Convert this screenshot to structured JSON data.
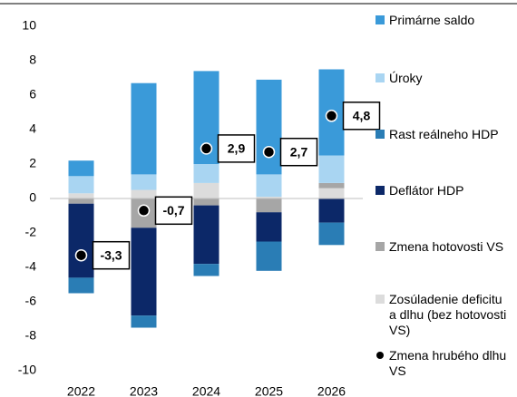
{
  "chart_data": {
    "type": "bar",
    "stacked": true,
    "categories": [
      "2022",
      "2023",
      "2024",
      "2025",
      "2026"
    ],
    "ylim": [
      -10,
      10
    ],
    "yticks": [
      -10,
      -8,
      -6,
      -4,
      -2,
      0,
      2,
      4,
      6,
      8,
      10
    ],
    "series": [
      {
        "name": "Primárne saldo",
        "color": "#3a9ad9",
        "values": [
          0.9,
          5.3,
          5.4,
          5.5,
          5.0
        ]
      },
      {
        "name": "Úroky",
        "color": "#a9d5f2",
        "values": [
          1.0,
          0.9,
          1.1,
          1.3,
          1.6
        ]
      },
      {
        "name": "Rast reálneho HDP",
        "color": "#2a7db5",
        "values": [
          -0.9,
          -0.7,
          -0.7,
          -1.7,
          -1.3
        ]
      },
      {
        "name": "Deflátor HDP",
        "color": "#0c2868",
        "values": [
          -4.3,
          -5.1,
          -3.4,
          -1.7,
          -1.4
        ]
      },
      {
        "name": "Zmena hotovosti VS",
        "color": "#a6a6a6",
        "values": [
          -0.3,
          -1.7,
          -0.4,
          -0.8,
          0.3
        ]
      },
      {
        "name": "Zosúladenie deficitu a dlhu (bez hotovosti VS)",
        "color": "#dcdcdc",
        "values": [
          0.3,
          0.5,
          0.9,
          0.1,
          0.6
        ]
      },
      {
        "name": "Zmena hrubého dlhu VS",
        "color": "#000000",
        "kind": "scatter",
        "values": [
          -3.3,
          -0.7,
          2.9,
          2.7,
          4.8
        ],
        "value_labels": [
          "-3,3",
          "-0,7",
          "2,9",
          "2,7",
          "4,8"
        ]
      }
    ]
  }
}
